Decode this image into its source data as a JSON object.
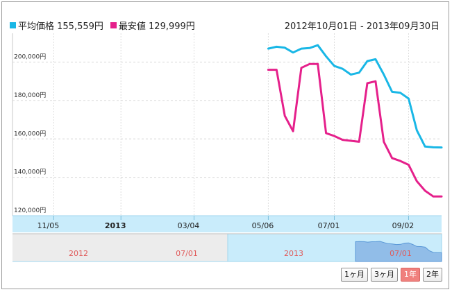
{
  "legend": {
    "avg_label": "平均価格 155,559円",
    "min_label": "最安値 129,999円",
    "avg_color": "#19b7e6",
    "min_color": "#e5208b"
  },
  "range_text": "2012年10月01日 - 2013年09月30日",
  "buttons": [
    {
      "label": "1ヶ月",
      "active": false
    },
    {
      "label": "3ヶ月",
      "active": false
    },
    {
      "label": "1年",
      "active": true
    },
    {
      "label": "2年",
      "active": false
    }
  ],
  "navigator": {
    "labels": [
      "2012",
      "07/01",
      "2013",
      "07/01"
    ],
    "label_color": "#e05a5a"
  },
  "chart_data": {
    "type": "line",
    "x_start": "2012-10-01",
    "x_end": "2013-09-30",
    "ylim": [
      120000,
      215000
    ],
    "yticks": [
      {
        "value": 200000,
        "label": "200,000円"
      },
      {
        "value": 180000,
        "label": "180,000円"
      },
      {
        "value": 160000,
        "label": "160,000円"
      },
      {
        "value": 140000,
        "label": "140,000円"
      },
      {
        "value": 120000,
        "label": "120,000円"
      }
    ],
    "xticks": [
      {
        "date": "2012-11-05",
        "label": "11/05",
        "bold": false
      },
      {
        "date": "2013-01-01",
        "label": "2013",
        "bold": true
      },
      {
        "date": "2013-03-04",
        "label": "03/04",
        "bold": false
      },
      {
        "date": "2013-05-06",
        "label": "05/06",
        "bold": false
      },
      {
        "date": "2013-07-01",
        "label": "07/01",
        "bold": false
      },
      {
        "date": "2013-09-02",
        "label": "09/02",
        "bold": false
      }
    ],
    "grid": true,
    "series": [
      {
        "name": "平均価格",
        "color": "#19b7e6",
        "points": [
          [
            "2013-05-06",
            207000
          ],
          [
            "2013-05-13",
            208000
          ],
          [
            "2013-05-20",
            207500
          ],
          [
            "2013-05-27",
            205000
          ],
          [
            "2013-06-03",
            207000
          ],
          [
            "2013-06-10",
            207300
          ],
          [
            "2013-06-17",
            208800
          ],
          [
            "2013-06-24",
            203000
          ],
          [
            "2013-07-01",
            198000
          ],
          [
            "2013-07-08",
            196500
          ],
          [
            "2013-07-15",
            193500
          ],
          [
            "2013-07-22",
            194500
          ],
          [
            "2013-07-29",
            200500
          ],
          [
            "2013-08-05",
            201500
          ],
          [
            "2013-08-12",
            193500
          ],
          [
            "2013-08-19",
            184500
          ],
          [
            "2013-08-26",
            184000
          ],
          [
            "2013-09-02",
            181000
          ],
          [
            "2013-09-09",
            164500
          ],
          [
            "2013-09-16",
            156000
          ],
          [
            "2013-09-23",
            155600
          ],
          [
            "2013-09-30",
            155559
          ]
        ]
      },
      {
        "name": "最安値",
        "color": "#e5208b",
        "points": [
          [
            "2013-05-06",
            196000
          ],
          [
            "2013-05-13",
            196000
          ],
          [
            "2013-05-20",
            172000
          ],
          [
            "2013-05-27",
            164000
          ],
          [
            "2013-06-03",
            197000
          ],
          [
            "2013-06-10",
            199000
          ],
          [
            "2013-06-17",
            199000
          ],
          [
            "2013-06-24",
            163000
          ],
          [
            "2013-07-01",
            161500
          ],
          [
            "2013-07-08",
            159500
          ],
          [
            "2013-07-15",
            159000
          ],
          [
            "2013-07-22",
            158500
          ],
          [
            "2013-07-29",
            189000
          ],
          [
            "2013-08-05",
            190000
          ],
          [
            "2013-08-12",
            158500
          ],
          [
            "2013-08-19",
            150000
          ],
          [
            "2013-08-26",
            148500
          ],
          [
            "2013-09-02",
            146500
          ],
          [
            "2013-09-09",
            138000
          ],
          [
            "2013-09-16",
            133000
          ],
          [
            "2013-09-23",
            130000
          ],
          [
            "2013-09-30",
            129999
          ]
        ]
      }
    ]
  }
}
